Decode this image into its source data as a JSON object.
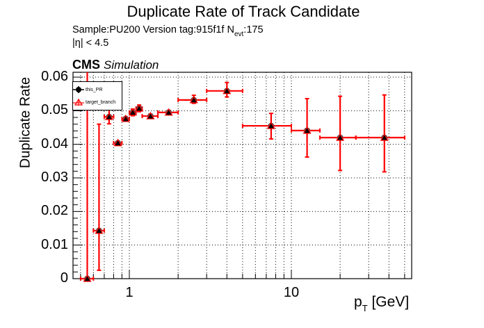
{
  "header": {
    "title": "Duplicate Rate of Track Candidate",
    "subtitle_prefix": "Sample:PU200   Version tag:915f1f  N",
    "subtitle_sub": "evt",
    "subtitle_suffix": ":175",
    "eta_cut": "|η| < 4.5",
    "cms_label": "CMS",
    "cms_sublabel": "Simulation"
  },
  "axes": {
    "ylabel": "Duplicate Rate",
    "xlabel_main": "p",
    "xlabel_sub": "T",
    "xlabel_unit": " [GeV]",
    "yticks": [
      "0",
      "0.01",
      "0.02",
      "0.03",
      "0.04",
      "0.05",
      "0.06"
    ],
    "xticks": [
      "1",
      "10"
    ]
  },
  "legend": {
    "items": [
      {
        "label": "this_PR"
      },
      {
        "label": "target_branch"
      }
    ]
  },
  "colors": {
    "series_pr": "#000000",
    "series_target": "#ff0000",
    "grid": "#000000"
  },
  "chart_data": {
    "type": "scatter",
    "title": "Duplicate Rate of Track Candidate",
    "subtitle": "Sample:PU200   Version tag:915f1f  N_evt:175",
    "annotations": [
      "|η| < 4.5",
      "CMS Simulation"
    ],
    "xlabel": "p_T [GeV]",
    "ylabel": "Duplicate Rate",
    "xscale": "log",
    "xlim": [
      0.45,
      55
    ],
    "ylim": [
      0,
      0.0615
    ],
    "grid": true,
    "legend_position": "top-left",
    "legend": [
      "this_PR",
      "target_branch"
    ],
    "x_bins": [
      [
        0.5,
        0.6
      ],
      [
        0.6,
        0.7
      ],
      [
        0.7,
        0.8
      ],
      [
        0.8,
        0.9
      ],
      [
        0.9,
        1.0
      ],
      [
        1.0,
        1.1
      ],
      [
        1.1,
        1.2
      ],
      [
        1.2,
        1.5
      ],
      [
        1.5,
        2.0
      ],
      [
        2,
        3
      ],
      [
        3,
        5
      ],
      [
        5,
        10
      ],
      [
        10,
        15
      ],
      [
        15,
        25
      ],
      [
        25,
        50
      ]
    ],
    "x": [
      0.55,
      0.65,
      0.75,
      0.85,
      0.95,
      1.05,
      1.15,
      1.35,
      1.75,
      2.5,
      4,
      7.5,
      12.5,
      20,
      37.5
    ],
    "series": [
      {
        "name": "this_PR",
        "values": [
          0.0,
          0.0143,
          0.0482,
          0.0404,
          0.0476,
          0.0495,
          0.0507,
          0.0484,
          0.0495,
          0.0532,
          0.0559,
          0.0455,
          0.0441,
          0.042,
          0.042
        ],
        "err_low": [
          0.0,
          0.0118,
          0.0021,
          0.0003,
          0.0006,
          0.001,
          0.001,
          0.0006,
          0.0006,
          0.001,
          0.0018,
          0.0039,
          0.0079,
          0.0098,
          0.0102
        ],
        "err_high": [
          0.0616,
          0.0317,
          0.0028,
          0.0003,
          0.0006,
          0.001,
          0.001,
          0.0006,
          0.0006,
          0.0014,
          0.0025,
          0.0037,
          0.0095,
          0.0123,
          0.0127
        ]
      },
      {
        "name": "target_branch",
        "values": [
          0.0,
          0.0143,
          0.0482,
          0.0404,
          0.0476,
          0.0495,
          0.0507,
          0.0484,
          0.0495,
          0.0532,
          0.0559,
          0.0455,
          0.0441,
          0.042,
          0.042
        ],
        "err_low": [
          0.0,
          0.0118,
          0.0021,
          0.0003,
          0.0006,
          0.001,
          0.001,
          0.0006,
          0.0006,
          0.001,
          0.0018,
          0.0039,
          0.0079,
          0.0098,
          0.0102
        ],
        "err_high": [
          0.0616,
          0.0317,
          0.0028,
          0.0003,
          0.0006,
          0.001,
          0.001,
          0.0006,
          0.0006,
          0.0014,
          0.0025,
          0.0037,
          0.0095,
          0.0123,
          0.0127
        ]
      }
    ]
  }
}
